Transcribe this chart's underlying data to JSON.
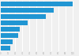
{
  "values": [
    100,
    74,
    63,
    37,
    27,
    24,
    17,
    13
  ],
  "bar_color": "#2196d3",
  "background_color": "#f0f0f0",
  "bar_gap": 0.25,
  "num_bars": 8,
  "xlim": [
    0,
    108
  ]
}
